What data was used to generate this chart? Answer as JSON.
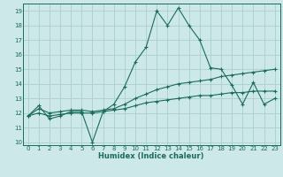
{
  "xlabel": "Humidex (Indice chaleur)",
  "xlim": [
    -0.5,
    23.5
  ],
  "ylim": [
    9.8,
    19.5
  ],
  "yticks": [
    10,
    11,
    12,
    13,
    14,
    15,
    16,
    17,
    18,
    19
  ],
  "xticks": [
    0,
    1,
    2,
    3,
    4,
    5,
    6,
    7,
    8,
    9,
    10,
    11,
    12,
    13,
    14,
    15,
    16,
    17,
    18,
    19,
    20,
    21,
    22,
    23
  ],
  "background_color": "#cce8e8",
  "grid_color": "#aad0d0",
  "line_color": "#1a6b5a",
  "series": [
    {
      "x": [
        0,
        1,
        2,
        3,
        4,
        5,
        6,
        7,
        8,
        9,
        10,
        11,
        12,
        13,
        14,
        15,
        16,
        17,
        18,
        19,
        20,
        21,
        22,
        23
      ],
      "y": [
        11.8,
        12.5,
        11.6,
        11.8,
        12.1,
        12.1,
        10.0,
        12.1,
        12.6,
        13.8,
        15.5,
        16.5,
        19.0,
        18.0,
        19.2,
        18.0,
        17.0,
        15.1,
        15.0,
        13.9,
        12.6,
        14.1,
        12.6,
        13.0
      ]
    },
    {
      "x": [
        0,
        1,
        2,
        3,
        4,
        5,
        6,
        7,
        8,
        9,
        10,
        11,
        12,
        13,
        14,
        15,
        16,
        17,
        18,
        19,
        20,
        21,
        22,
        23
      ],
      "y": [
        11.8,
        12.3,
        12.0,
        12.1,
        12.2,
        12.2,
        12.1,
        12.2,
        12.3,
        12.6,
        13.0,
        13.3,
        13.6,
        13.8,
        14.0,
        14.1,
        14.2,
        14.3,
        14.5,
        14.6,
        14.7,
        14.8,
        14.9,
        15.0
      ]
    },
    {
      "x": [
        0,
        1,
        2,
        3,
        4,
        5,
        6,
        7,
        8,
        9,
        10,
        11,
        12,
        13,
        14,
        15,
        16,
        17,
        18,
        19,
        20,
        21,
        22,
        23
      ],
      "y": [
        11.8,
        12.0,
        11.8,
        11.9,
        12.0,
        12.0,
        12.0,
        12.1,
        12.2,
        12.3,
        12.5,
        12.7,
        12.8,
        12.9,
        13.0,
        13.1,
        13.2,
        13.2,
        13.3,
        13.4,
        13.4,
        13.5,
        13.5,
        13.5
      ]
    }
  ]
}
